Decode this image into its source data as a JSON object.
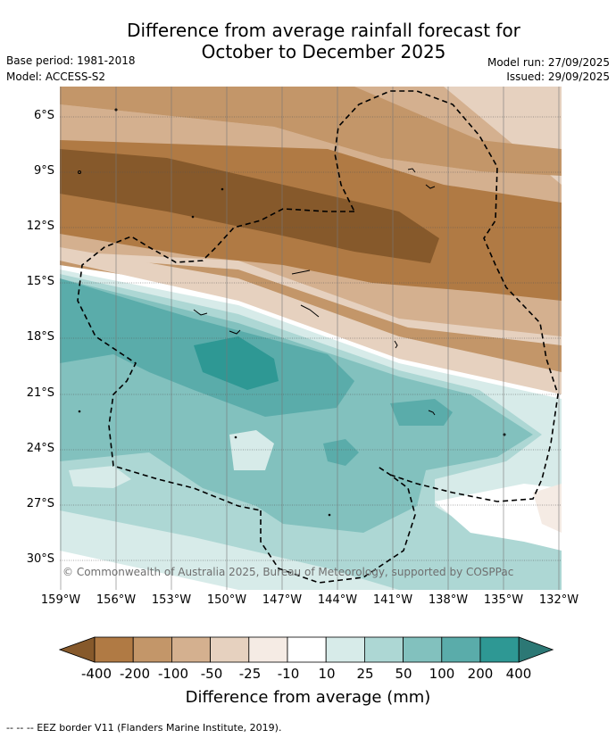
{
  "title": {
    "line1": "Difference from average rainfall forecast for",
    "line2": "October to December 2025"
  },
  "meta": {
    "base_period": "Base period: 1981-2018",
    "model": "Model: ACCESS-S2",
    "model_run": "Model run: 27/09/2025",
    "issued": "Issued: 29/09/2025"
  },
  "axes": {
    "lat_labels": [
      "6°S",
      "9°S",
      "12°S",
      "15°S",
      "18°S",
      "21°S",
      "24°S",
      "27°S",
      "30°S"
    ],
    "lon_labels": [
      "159°W",
      "156°W",
      "153°W",
      "150°W",
      "147°W",
      "144°W",
      "141°W",
      "138°W",
      "135°W",
      "132°W"
    ]
  },
  "copyright": "© Commonwealth of Australia 2025, Bureau of Meteorology, supported by COSPPac",
  "colorbar": {
    "title": "Difference from average (mm)",
    "labels": [
      "-400",
      "-200",
      "-100",
      "-50",
      "-25",
      "-10",
      "10",
      "25",
      "50",
      "100",
      "200",
      "400"
    ],
    "colors": [
      "#86592b",
      "#b07a44",
      "#c39669",
      "#d4b08f",
      "#e6d1bf",
      "#f5ebe4",
      "#ffffff",
      "#d7ebe9",
      "#add7d4",
      "#82c1be",
      "#5aacaa",
      "#2e9894",
      "#2c7875"
    ]
  },
  "legend_note": "--  --  -- EEZ border V11 (Flanders Marine Institute, 2019)."
}
